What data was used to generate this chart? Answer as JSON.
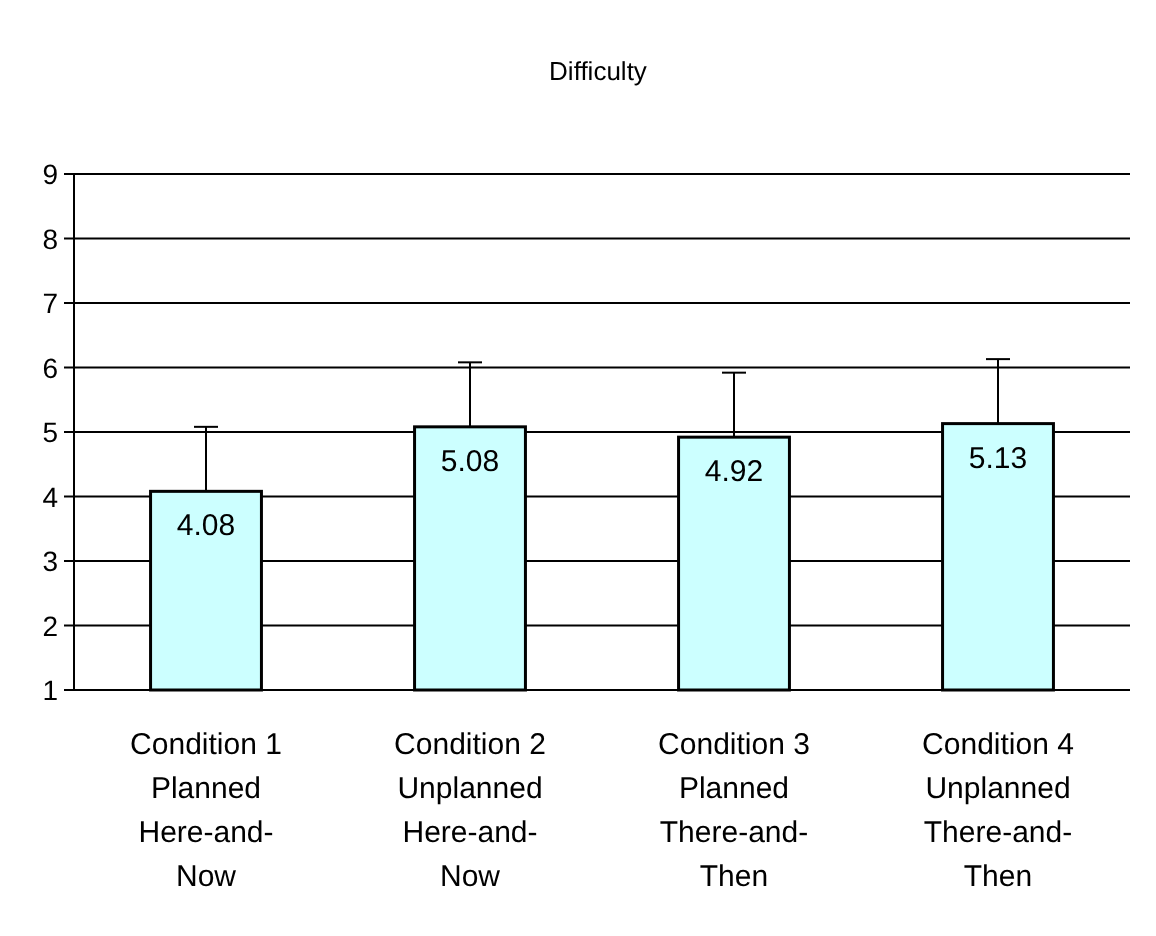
{
  "chart_data": {
    "type": "bar",
    "title": "Difficulty",
    "categories": [
      "Condition 1\nPlanned\nHere-and-\nNow",
      "Condition 2\nUnplanned\nHere-and-\nNow",
      "Condition 3\nPlanned\nThere-and-\nThen",
      "Condition 4\nUnplanned\nThere-and-\nThen"
    ],
    "values": [
      4.08,
      5.08,
      4.92,
      5.13
    ],
    "errors": [
      [
        4.08,
        5.08
      ],
      [
        5.08,
        6.08
      ],
      [
        4.92,
        5.92
      ],
      [
        5.13,
        6.13
      ]
    ],
    "color": "#ccffff",
    "ylim": [
      1,
      9
    ],
    "yticks": [
      1,
      2,
      3,
      4,
      5,
      6,
      7,
      8,
      9
    ],
    "grid": "y",
    "data_labels": true
  }
}
